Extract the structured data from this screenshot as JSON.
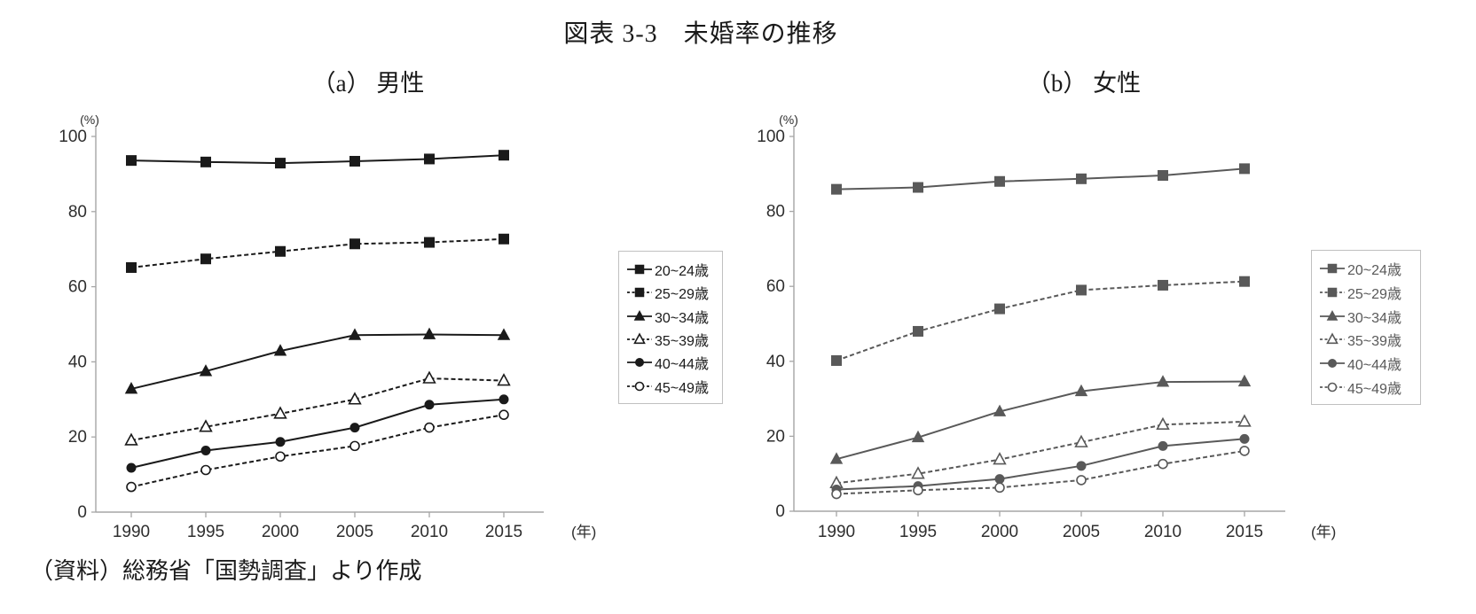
{
  "page": {
    "title": "図表 3-3　未婚率の推移",
    "source_note": "（資料）総務省「国勢調査」より作成"
  },
  "chart_data": [
    {
      "id": "a",
      "type": "line",
      "title": "（a） 男性",
      "x_unit": "(年)",
      "y_unit": "(%)",
      "categories": [
        "1990",
        "1995",
        "2000",
        "2005",
        "2010",
        "2015"
      ],
      "ylim": [
        0,
        100
      ],
      "yticks": [
        0,
        20,
        40,
        60,
        80,
        100
      ],
      "color": "#1a1a1a",
      "grid": false,
      "legend_position": "right",
      "series": [
        {
          "name": "20~24歳",
          "line": "solid",
          "marker": "square",
          "fill": "filled",
          "values": [
            93.6,
            93.2,
            92.9,
            93.4,
            94.0,
            95.0
          ]
        },
        {
          "name": "25~29歳",
          "line": "dashed",
          "marker": "square",
          "fill": "filled",
          "values": [
            65.1,
            67.4,
            69.4,
            71.4,
            71.8,
            72.7
          ]
        },
        {
          "name": "30~34歳",
          "line": "solid",
          "marker": "triangle",
          "fill": "filled",
          "values": [
            32.8,
            37.5,
            42.9,
            47.1,
            47.3,
            47.1
          ]
        },
        {
          "name": "35~39歳",
          "line": "dashed",
          "marker": "triangle",
          "fill": "open",
          "values": [
            19.1,
            22.7,
            26.2,
            30.0,
            35.6,
            35.0
          ]
        },
        {
          "name": "40~44歳",
          "line": "solid",
          "marker": "circle",
          "fill": "filled",
          "values": [
            11.8,
            16.4,
            18.7,
            22.5,
            28.6,
            30.0
          ]
        },
        {
          "name": "45~49歳",
          "line": "dashed",
          "marker": "circle",
          "fill": "open",
          "values": [
            6.7,
            11.2,
            14.8,
            17.6,
            22.5,
            25.9
          ]
        }
      ]
    },
    {
      "id": "b",
      "type": "line",
      "title": "（b） 女性",
      "x_unit": "(年)",
      "y_unit": "(%)",
      "categories": [
        "1990",
        "1995",
        "2000",
        "2005",
        "2010",
        "2015"
      ],
      "ylim": [
        0,
        100
      ],
      "yticks": [
        0,
        20,
        40,
        60,
        80,
        100
      ],
      "color": "#595959",
      "grid": false,
      "legend_position": "right",
      "series": [
        {
          "name": "20~24歳",
          "line": "solid",
          "marker": "square",
          "fill": "filled",
          "values": [
            85.9,
            86.4,
            88.0,
            88.7,
            89.6,
            91.4
          ]
        },
        {
          "name": "25~29歳",
          "line": "dashed",
          "marker": "square",
          "fill": "filled",
          "values": [
            40.2,
            48.0,
            54.0,
            59.0,
            60.3,
            61.3
          ]
        },
        {
          "name": "30~34歳",
          "line": "solid",
          "marker": "triangle",
          "fill": "filled",
          "values": [
            13.9,
            19.7,
            26.6,
            32.0,
            34.5,
            34.6
          ]
        },
        {
          "name": "35~39歳",
          "line": "dashed",
          "marker": "triangle",
          "fill": "open",
          "values": [
            7.5,
            10.0,
            13.8,
            18.4,
            23.1,
            23.9
          ]
        },
        {
          "name": "40~44歳",
          "line": "solid",
          "marker": "circle",
          "fill": "filled",
          "values": [
            5.8,
            6.7,
            8.6,
            12.1,
            17.4,
            19.3
          ]
        },
        {
          "name": "45~49歳",
          "line": "dashed",
          "marker": "circle",
          "fill": "open",
          "values": [
            4.6,
            5.6,
            6.3,
            8.3,
            12.6,
            16.1
          ]
        }
      ]
    }
  ]
}
